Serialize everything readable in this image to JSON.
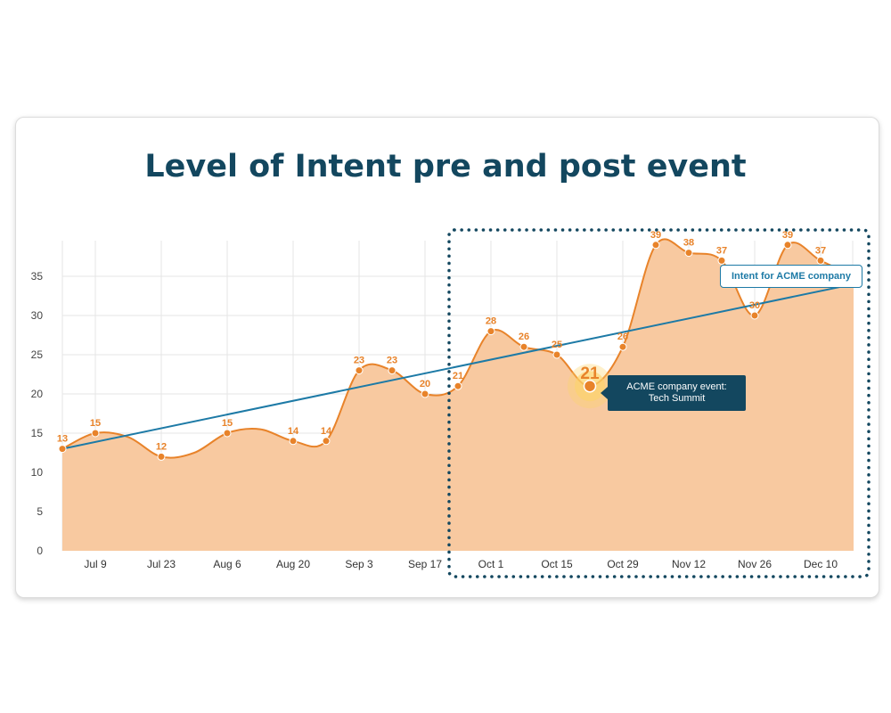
{
  "title": "Level of Intent pre and post event",
  "chart_data": {
    "type": "area",
    "title": "Level of Intent pre and post event",
    "xlabel": "",
    "ylabel": "",
    "ylim": [
      0,
      39
    ],
    "yticks": [
      0,
      5,
      10,
      15,
      20,
      25,
      30,
      35
    ],
    "x_tick_labels": [
      "Jul 9",
      "Jul 23",
      "Aug 6",
      "Aug 20",
      "Sep 3",
      "Sep 17",
      "Oct 1",
      "Oct 15",
      "Oct 29",
      "Nov 12",
      "Nov 26",
      "Dec 10"
    ],
    "grid": true,
    "series": [
      {
        "values": [
          13,
          15,
          12,
          15,
          14,
          14,
          23,
          23,
          20,
          21,
          28,
          26,
          25,
          21,
          26,
          39,
          38,
          37,
          30,
          39,
          37
        ],
        "labeled_points": [
          0,
          1,
          3,
          5,
          6,
          8,
          10,
          11,
          12,
          13,
          14,
          15,
          16,
          17,
          18,
          19,
          20,
          21,
          22,
          23,
          24
        ]
      }
    ],
    "points": [
      {
        "x": "Jul 2",
        "y": 13
      },
      {
        "x": "Jul 9",
        "y": 15
      },
      {
        "x": "Jul 16",
        "y": 14.5
      },
      {
        "x": "Jul 23",
        "y": 12
      },
      {
        "x": "Jul 30",
        "y": 12.5
      },
      {
        "x": "Aug 6",
        "y": 15
      },
      {
        "x": "Aug 13",
        "y": 15.5
      },
      {
        "x": "Aug 20",
        "y": 14
      },
      {
        "x": "Aug 27",
        "y": 14
      },
      {
        "x": "Sep 3",
        "y": 23
      },
      {
        "x": "Sep 10",
        "y": 23
      },
      {
        "x": "Sep 17",
        "y": 20
      },
      {
        "x": "Sep 24",
        "y": 21
      },
      {
        "x": "Oct 1",
        "y": 28
      },
      {
        "x": "Oct 8",
        "y": 26
      },
      {
        "x": "Oct 15",
        "y": 25
      },
      {
        "x": "Oct 22",
        "y": 21
      },
      {
        "x": "Oct 29",
        "y": 26
      },
      {
        "x": "Nov 5",
        "y": 39
      },
      {
        "x": "Nov 12",
        "y": 38
      },
      {
        "x": "Nov 19",
        "y": 37
      },
      {
        "x": "Nov 26",
        "y": 30
      },
      {
        "x": "Dec 3",
        "y": 39
      },
      {
        "x": "Dec 10",
        "y": 37
      },
      {
        "x": "Dec 17",
        "y": 35
      }
    ],
    "point_labels": [
      {
        "x": "Jul 2",
        "label": "13"
      },
      {
        "x": "Jul 9",
        "label": "15"
      },
      {
        "x": "Jul 23",
        "label": "12"
      },
      {
        "x": "Aug 6",
        "label": "15"
      },
      {
        "x": "Aug 20",
        "label": "14"
      },
      {
        "x": "Aug 27",
        "label": "14"
      },
      {
        "x": "Sep 3",
        "label": "23"
      },
      {
        "x": "Sep 10",
        "label": "23"
      },
      {
        "x": "Sep 17",
        "label": "20"
      },
      {
        "x": "Sep 24",
        "label": "21"
      },
      {
        "x": "Oct 1",
        "label": "28"
      },
      {
        "x": "Oct 8",
        "label": "26"
      },
      {
        "x": "Oct 15",
        "label": "25"
      },
      {
        "x": "Oct 29",
        "label": "26"
      },
      {
        "x": "Nov 5",
        "label": "39"
      },
      {
        "x": "Nov 12",
        "label": "38"
      },
      {
        "x": "Nov 19",
        "label": "37"
      },
      {
        "x": "Nov 26",
        "label": "30"
      },
      {
        "x": "Dec 3",
        "label": "39"
      },
      {
        "x": "Dec 10",
        "label": "37"
      }
    ],
    "dotted_points": [
      "Jul 2",
      "Jul 9",
      "Jul 23",
      "Aug 6",
      "Aug 20",
      "Aug 27",
      "Sep 3",
      "Sep 10",
      "Sep 17",
      "Sep 24",
      "Oct 1",
      "Oct 8",
      "Oct 15",
      "Oct 29",
      "Nov 5",
      "Nov 12",
      "Nov 19",
      "Nov 26",
      "Dec 3",
      "Dec 10"
    ],
    "highlight": {
      "x": "Oct 22",
      "y": 21,
      "label": "21"
    },
    "trendline": {
      "name": "Intent for ACME company",
      "start": {
        "x": "Jul 2",
        "y": 13
      },
      "end": {
        "x": "Dec 17",
        "y": 34
      }
    },
    "highlight_region": {
      "from": "Sep 24",
      "to": "Dec 17"
    }
  },
  "legend": {
    "trend_label": "Intent for ACME company"
  },
  "callout": {
    "line1": "ACME company event:",
    "line2": "Tech Summit"
  },
  "colors": {
    "title": "#13475f",
    "area_fill": "#f8c9a0",
    "line": "#e8832a",
    "trend": "#1d7aa6",
    "region_border": "#13475f",
    "callout_bg": "#13475f",
    "highlight_glow": "#fbd36b"
  }
}
